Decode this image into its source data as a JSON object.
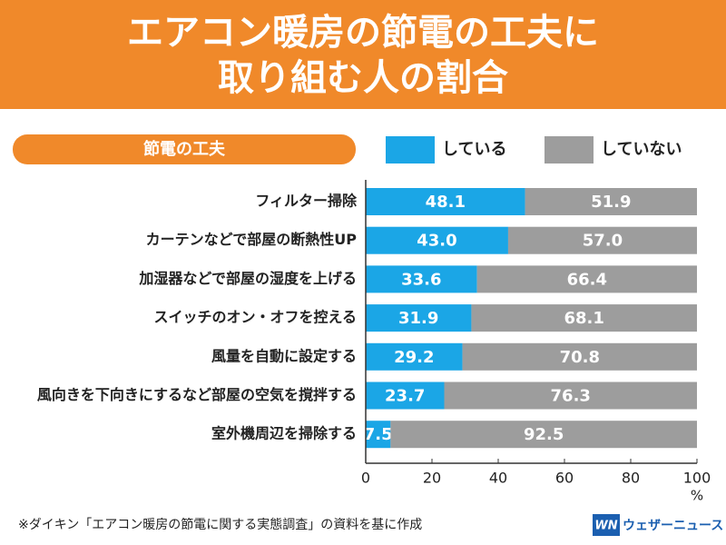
{
  "chart_data": {
    "type": "stacked_barh",
    "title": [
      "エアコン暖房の節電の工夫に",
      "取り組む人の割合"
    ],
    "category_header": "節電の工夫",
    "categories": [
      "フィルター掃除",
      "カーテンなどで部屋の断熱性UP",
      "加湿器などで部屋の湿度を上げる",
      "スイッチのオン・オフを控える",
      "風量を自動に設定する",
      "風向きを下向きにするなど部屋の空気を撹拌する",
      "室外機周辺を掃除する"
    ],
    "series": [
      {
        "name": "している",
        "color": "#1ba6e6",
        "values": [
          48.1,
          43.0,
          33.6,
          31.9,
          29.2,
          23.7,
          7.5
        ],
        "value_labels": [
          "48.1",
          "43.0",
          "33.6",
          "31.9",
          "29.2",
          "23.7",
          "7.5"
        ]
      },
      {
        "name": "していない",
        "color": "#9d9d9d",
        "values": [
          51.9,
          57.0,
          66.4,
          68.1,
          70.8,
          76.3,
          92.5
        ],
        "value_labels": [
          "51.9",
          "57.0",
          "66.4",
          "68.1",
          "70.8",
          "76.3",
          "92.5"
        ]
      }
    ],
    "xlim": [
      0,
      100
    ],
    "xticks": [
      0,
      20,
      40,
      60,
      80,
      100
    ],
    "x_label": "%",
    "footnote": "※ダイキン「エアコン暖房の節電に関する実態調査」の資料を基に作成",
    "logo_mark": "WN",
    "logo": "ウェザーニュース"
  }
}
